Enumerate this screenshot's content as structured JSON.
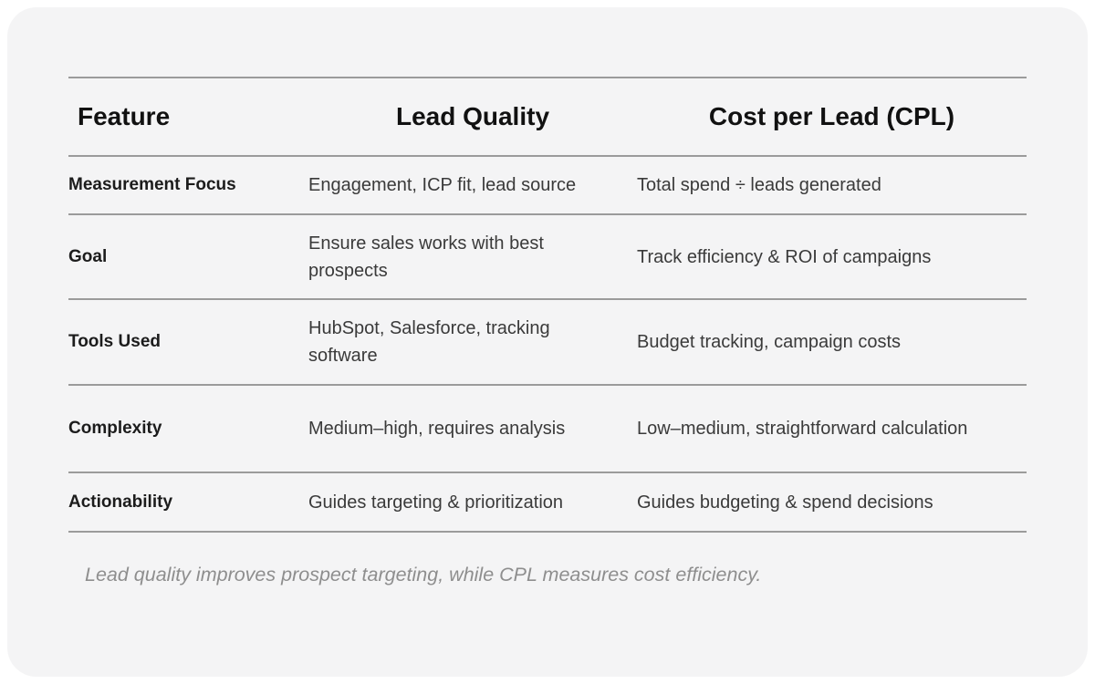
{
  "chart_data": {
    "type": "table",
    "title": "",
    "columns": [
      "Feature",
      "Lead Quality",
      "Cost per Lead (CPL)"
    ],
    "rows": [
      [
        "Measurement Focus",
        "Engagement, ICP fit, lead source",
        "Total spend ÷ leads generated"
      ],
      [
        "Goal",
        "Ensure sales works with best prospects",
        "Track efficiency & ROI of campaigns"
      ],
      [
        "Tools Used",
        "HubSpot, Salesforce, tracking software",
        "Budget tracking, campaign costs"
      ],
      [
        "Complexity",
        "Medium–high, requires analysis",
        "Low–medium, straightforward calculation"
      ],
      [
        "Actionability",
        "Guides targeting & prioritization",
        "Guides budgeting & spend decisions"
      ]
    ],
    "caption": "Lead quality improves prospect targeting, while CPL measures cost efficiency.",
    "layout": {
      "legend": "none",
      "grid": "horizontal-rules-only",
      "header_alignment": [
        "left",
        "center",
        "center"
      ],
      "body_alignment": [
        "left",
        "left",
        "left"
      ]
    },
    "colors": {
      "page_background": "#ffffff",
      "card_background": "#f4f4f5",
      "rule": "#9b9b9b",
      "header_text": "#111111",
      "feature_text": "#1c1c1c",
      "body_text": "#3a3a3a",
      "caption_text": "#8e8e8e"
    }
  }
}
